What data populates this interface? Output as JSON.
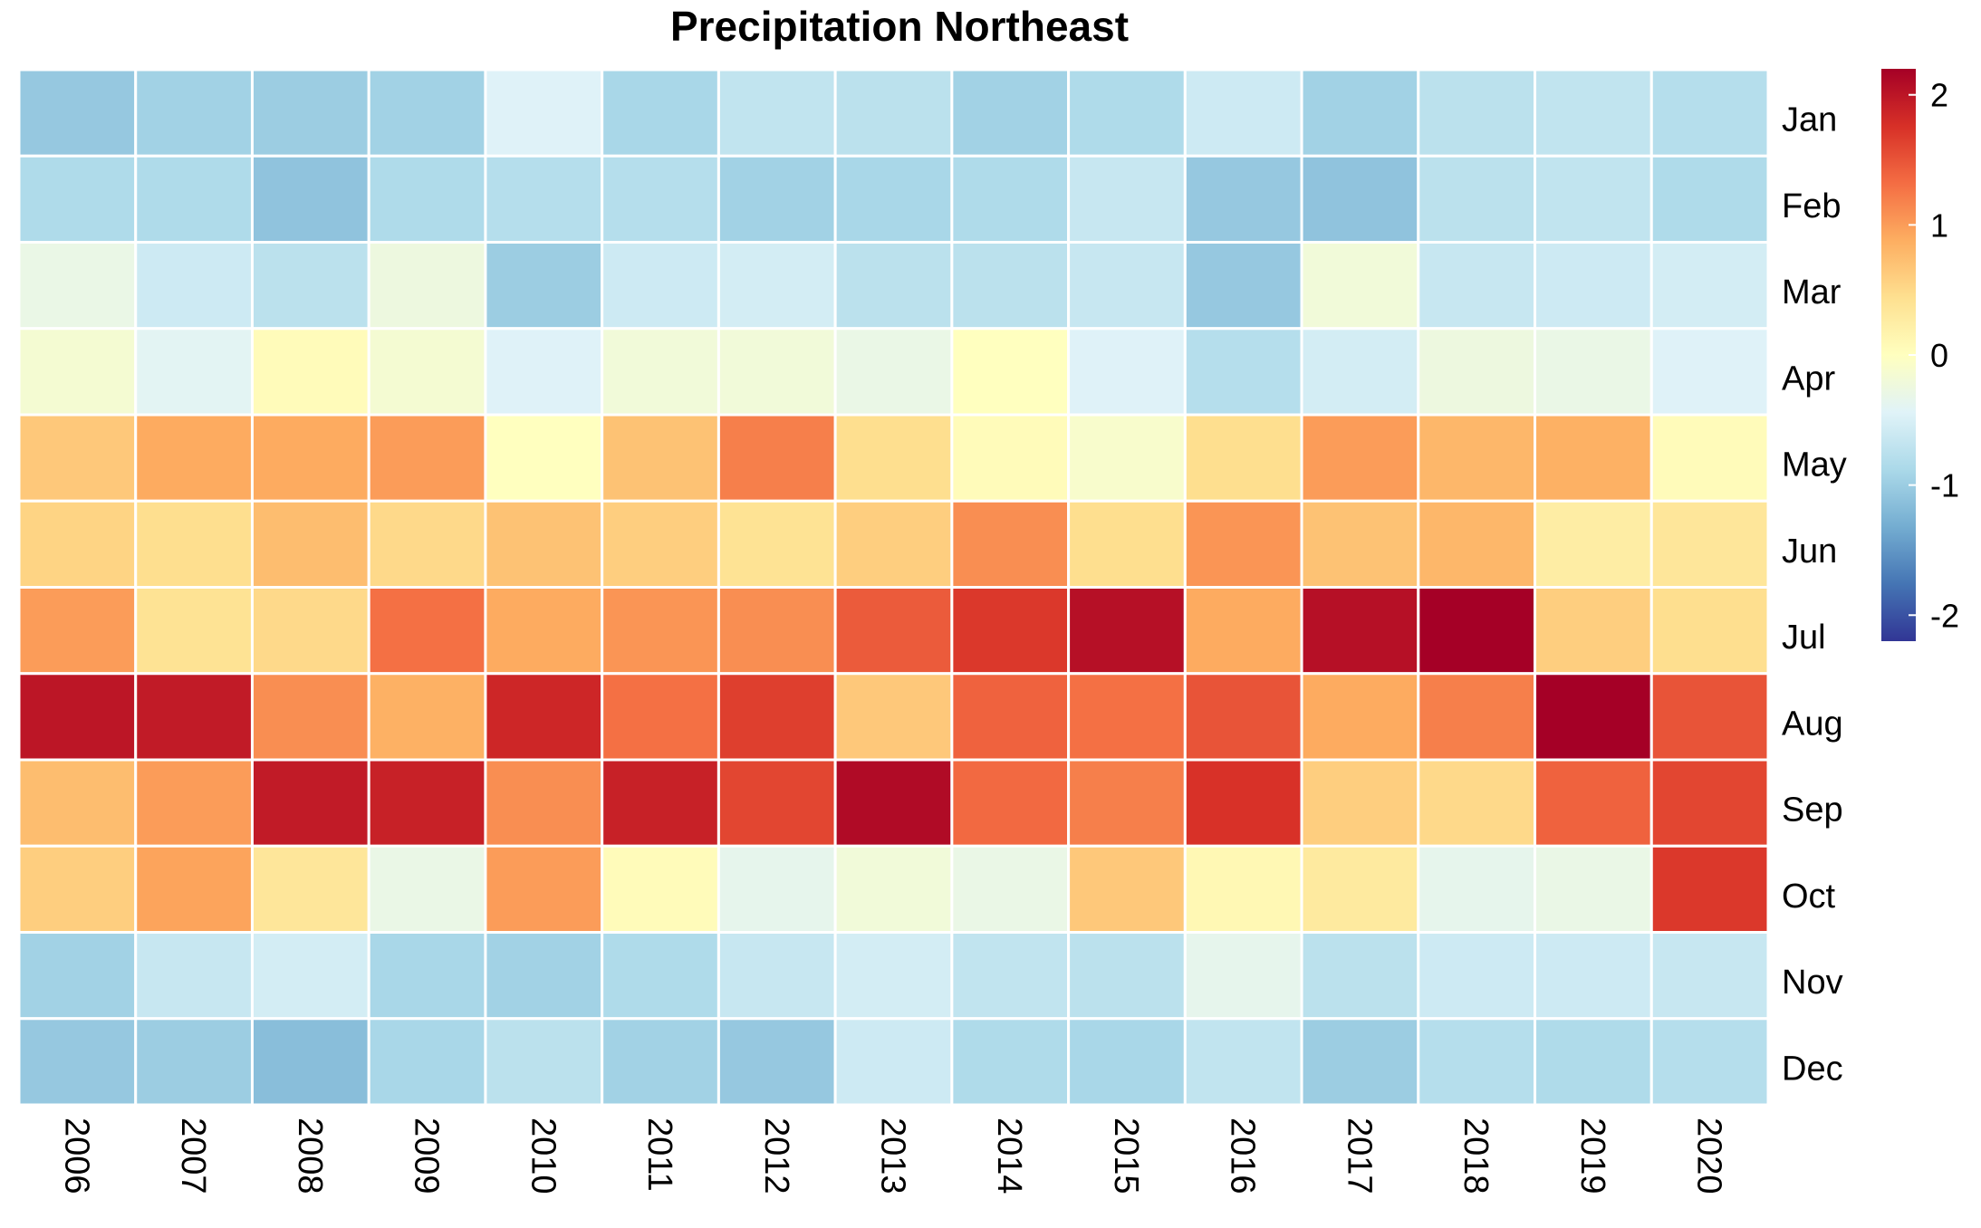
{
  "chart_data": {
    "type": "heatmap",
    "title": "Precipitation Northeast",
    "columns": [
      "2006",
      "2007",
      "2008",
      "2009",
      "2010",
      "2011",
      "2012",
      "2013",
      "2014",
      "2015",
      "2016",
      "2017",
      "2018",
      "2019",
      "2020"
    ],
    "rows": [
      "Jan",
      "Feb",
      "Mar",
      "Apr",
      "May",
      "Jun",
      "Jul",
      "Aug",
      "Sep",
      "Oct",
      "Nov",
      "Dec"
    ],
    "values": [
      [
        -1.05,
        -0.95,
        -1.0,
        -0.95,
        -0.45,
        -0.9,
        -0.7,
        -0.75,
        -0.95,
        -0.85,
        -0.6,
        -0.95,
        -0.75,
        -0.7,
        -0.8
      ],
      [
        -0.85,
        -0.85,
        -1.1,
        -0.85,
        -0.8,
        -0.8,
        -0.95,
        -0.9,
        -0.85,
        -0.65,
        -1.05,
        -1.1,
        -0.75,
        -0.7,
        -0.85
      ],
      [
        -0.3,
        -0.6,
        -0.75,
        -0.25,
        -1.0,
        -0.6,
        -0.55,
        -0.75,
        -0.75,
        -0.65,
        -1.05,
        -0.2,
        -0.65,
        -0.6,
        -0.55
      ],
      [
        -0.15,
        -0.4,
        0.05,
        -0.15,
        -0.45,
        -0.2,
        -0.2,
        -0.3,
        0.0,
        -0.45,
        -0.8,
        -0.55,
        -0.25,
        -0.3,
        -0.45
      ],
      [
        0.65,
        0.9,
        0.9,
        1.0,
        0.0,
        0.7,
        1.2,
        0.45,
        0.05,
        -0.1,
        0.45,
        1.0,
        0.8,
        0.85,
        0.05
      ],
      [
        0.55,
        0.45,
        0.75,
        0.5,
        0.7,
        0.6,
        0.4,
        0.6,
        1.1,
        0.45,
        1.05,
        0.7,
        0.8,
        0.25,
        0.35
      ],
      [
        1.0,
        0.4,
        0.5,
        1.3,
        0.9,
        1.05,
        1.1,
        1.45,
        1.7,
        2.05,
        0.9,
        2.05,
        2.25,
        0.6,
        0.45
      ],
      [
        2.0,
        1.95,
        1.1,
        0.85,
        1.85,
        1.3,
        1.65,
        0.65,
        1.4,
        1.3,
        1.5,
        0.9,
        1.2,
        2.25,
        1.5
      ],
      [
        0.75,
        1.0,
        1.95,
        1.9,
        1.1,
        1.9,
        1.6,
        2.1,
        1.35,
        1.2,
        1.75,
        0.6,
        0.5,
        1.4,
        1.6
      ],
      [
        0.6,
        0.95,
        0.35,
        -0.3,
        1.0,
        0.05,
        -0.35,
        -0.2,
        -0.3,
        0.65,
        0.1,
        0.3,
        -0.35,
        -0.3,
        1.7
      ],
      [
        -0.95,
        -0.65,
        -0.55,
        -0.9,
        -0.95,
        -0.85,
        -0.65,
        -0.55,
        -0.7,
        -0.75,
        -0.35,
        -0.75,
        -0.6,
        -0.6,
        -0.65
      ],
      [
        -1.05,
        -1.0,
        -1.15,
        -0.9,
        -0.75,
        -0.95,
        -1.05,
        -0.6,
        -0.85,
        -0.9,
        -0.7,
        -1.0,
        -0.8,
        -0.85,
        -0.8
      ]
    ],
    "colorbar": {
      "min": -2.2,
      "max": 2.2,
      "ticks": [
        2,
        1,
        0,
        -1,
        -2
      ],
      "tick_labels": [
        "2",
        "1",
        "0",
        "-1",
        "-2"
      ],
      "palette": [
        "#313695",
        "#4575b4",
        "#74add1",
        "#abd9e9",
        "#e0f3f8",
        "#ffffbf",
        "#fee090",
        "#fdae61",
        "#f46d43",
        "#d73027",
        "#a50026"
      ]
    },
    "grid": false,
    "legend_placement": "right"
  }
}
